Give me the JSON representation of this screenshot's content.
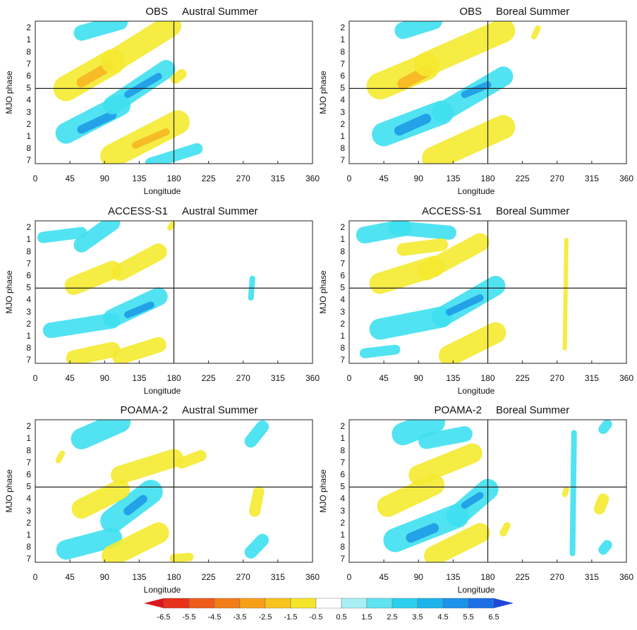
{
  "chart_data": [
    {
      "type": "hovmoller",
      "model": "OBS",
      "season": "Austral Summer",
      "x_label": "Longitude",
      "y_label": "MJO phase",
      "xlim": [
        0,
        360
      ],
      "xticks": [
        0,
        45,
        90,
        135,
        180,
        225,
        270,
        315,
        360
      ],
      "y_categories": [
        7,
        8,
        1,
        2,
        3,
        4,
        5,
        6,
        7,
        8,
        1,
        2
      ],
      "ref_x": 180,
      "ref_phase": 5
    },
    {
      "type": "hovmoller",
      "model": "OBS",
      "season": "Boreal Summer",
      "x_label": "Longitude",
      "y_label": "MJO phase",
      "xlim": [
        0,
        360
      ],
      "xticks": [
        0,
        45,
        90,
        135,
        180,
        225,
        270,
        315,
        360
      ],
      "y_categories": [
        7,
        8,
        1,
        2,
        3,
        4,
        5,
        6,
        7,
        8,
        1,
        2
      ],
      "ref_x": 180,
      "ref_phase": 5
    },
    {
      "type": "hovmoller",
      "model": "ACCESS-S1",
      "season": "Austral Summer",
      "x_label": "Longitude",
      "y_label": "MJO phase",
      "xlim": [
        0,
        360
      ],
      "xticks": [
        0,
        45,
        90,
        135,
        180,
        225,
        270,
        315,
        360
      ],
      "y_categories": [
        7,
        8,
        1,
        2,
        3,
        4,
        5,
        6,
        7,
        8,
        1,
        2
      ],
      "ref_x": 180,
      "ref_phase": 5
    },
    {
      "type": "hovmoller",
      "model": "ACCESS-S1",
      "season": "Boreal Summer",
      "x_label": "Longitude",
      "y_label": "MJO phase",
      "xlim": [
        0,
        360
      ],
      "xticks": [
        0,
        45,
        90,
        135,
        180,
        225,
        270,
        315,
        360
      ],
      "y_categories": [
        7,
        8,
        1,
        2,
        3,
        4,
        5,
        6,
        7,
        8,
        1,
        2
      ],
      "ref_x": 180,
      "ref_phase": 5
    },
    {
      "type": "hovmoller",
      "model": "POAMA-2",
      "season": "Austral Summer",
      "x_label": "Longitude",
      "y_label": "MJO phase",
      "xlim": [
        0,
        360
      ],
      "xticks": [
        0,
        45,
        90,
        135,
        180,
        225,
        270,
        315,
        360
      ],
      "y_categories": [
        7,
        8,
        1,
        2,
        3,
        4,
        5,
        6,
        7,
        8,
        1,
        2
      ],
      "ref_x": 180,
      "ref_phase": 5
    },
    {
      "type": "hovmoller",
      "model": "POAMA-2",
      "season": "Boreal Summer",
      "x_label": "Longitude",
      "y_label": "MJO phase",
      "xlim": [
        0,
        360
      ],
      "xticks": [
        0,
        45,
        90,
        135,
        180,
        225,
        270,
        315,
        360
      ],
      "y_categories": [
        7,
        8,
        1,
        2,
        3,
        4,
        5,
        6,
        7,
        8,
        1,
        2
      ],
      "ref_x": 180,
      "ref_phase": 5
    }
  ],
  "colorbar": {
    "levels": [
      -6.5,
      -5.5,
      -4.5,
      -3.5,
      -2.5,
      -1.5,
      -0.5,
      0.5,
      1.5,
      2.5,
      3.5,
      4.5,
      5.5,
      6.5
    ],
    "colors": [
      "#d7191c",
      "#e8321c",
      "#ee5a1a",
      "#f27c18",
      "#f6a01a",
      "#f9c31d",
      "#f5e52b",
      "#ffffff",
      "#a8eff5",
      "#5fe3f0",
      "#2cd0ee",
      "#1cb3ec",
      "#1a93ea",
      "#1c70e4",
      "#1f48d8"
    ]
  }
}
